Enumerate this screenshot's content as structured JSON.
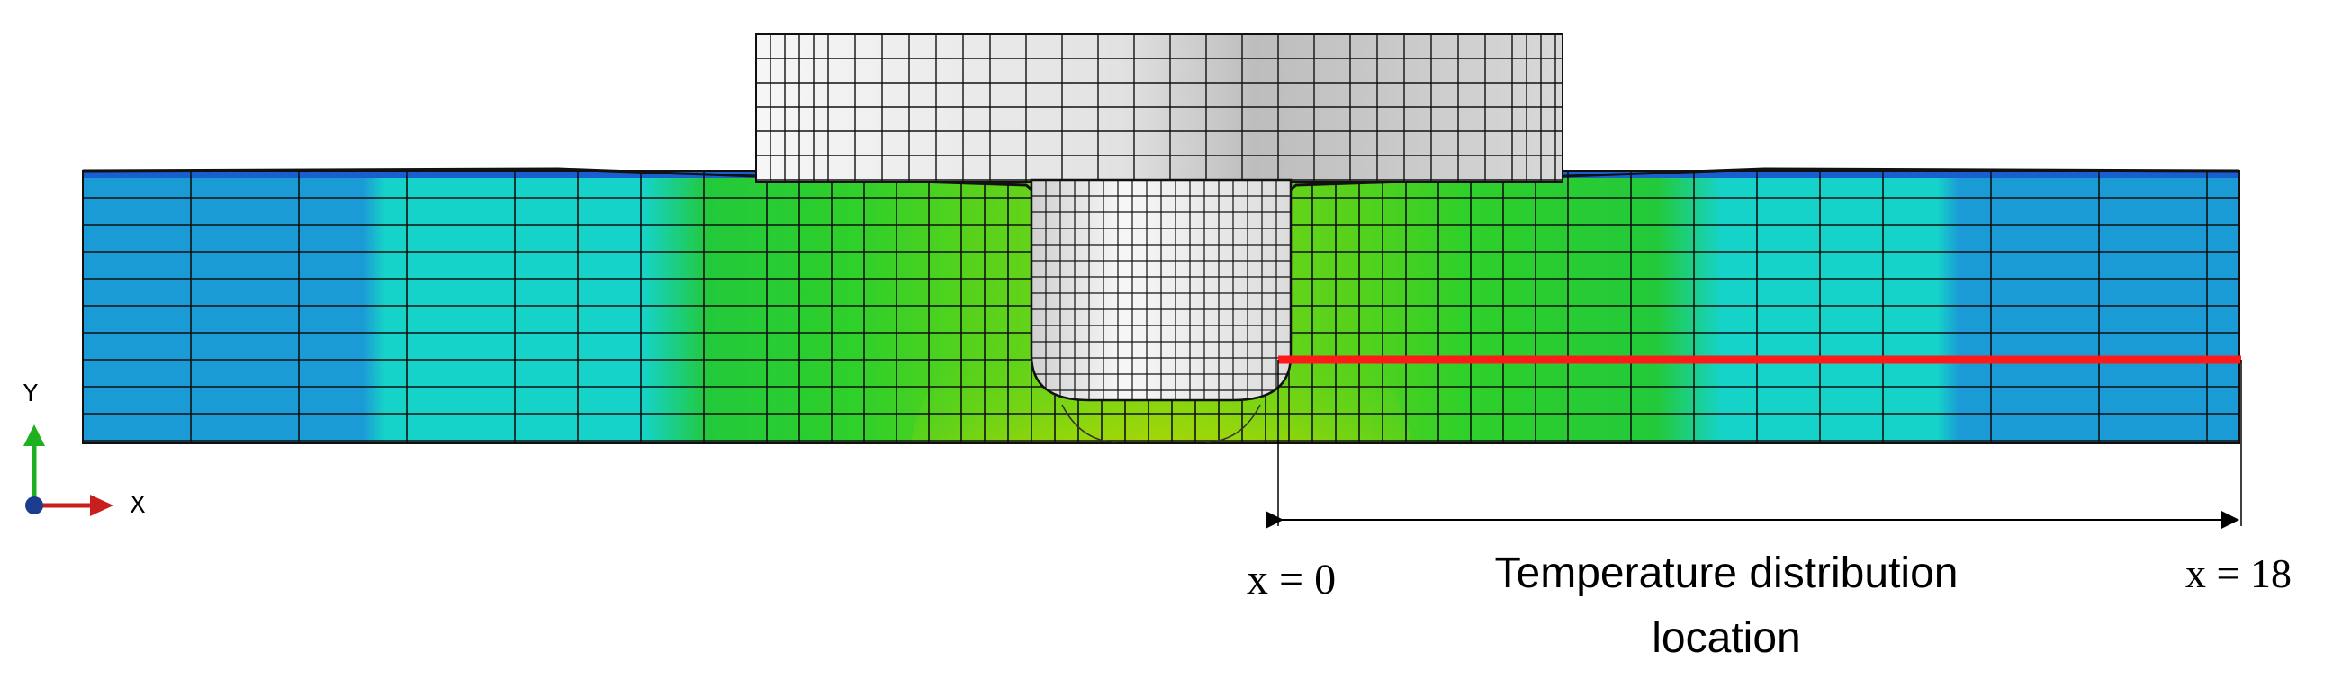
{
  "colors": {
    "cold": "#1b9bd6",
    "cool": "#15d3c8",
    "warm": "#22c93a",
    "mid": "#55d21c",
    "hot_yellow": "#d8d400",
    "hot_orange": "#f07a14",
    "hottest": "#e84b0c",
    "tool_light": "#f4f4f4",
    "tool_dark": "#b8b8b8",
    "pin": "#f2f2f2",
    "mesh": "#111111",
    "line": "#ff1a1a",
    "axis_y": "#1fb01f",
    "axis_x": "#c81e1e",
    "origin": "#1b3c8f"
  },
  "labels": {
    "axis_y": "Y",
    "axis_x": "X",
    "x_start": "x = 0",
    "x_end": "x = 18",
    "caption_line1": "Temperature distribution",
    "caption_line2": "location"
  }
}
